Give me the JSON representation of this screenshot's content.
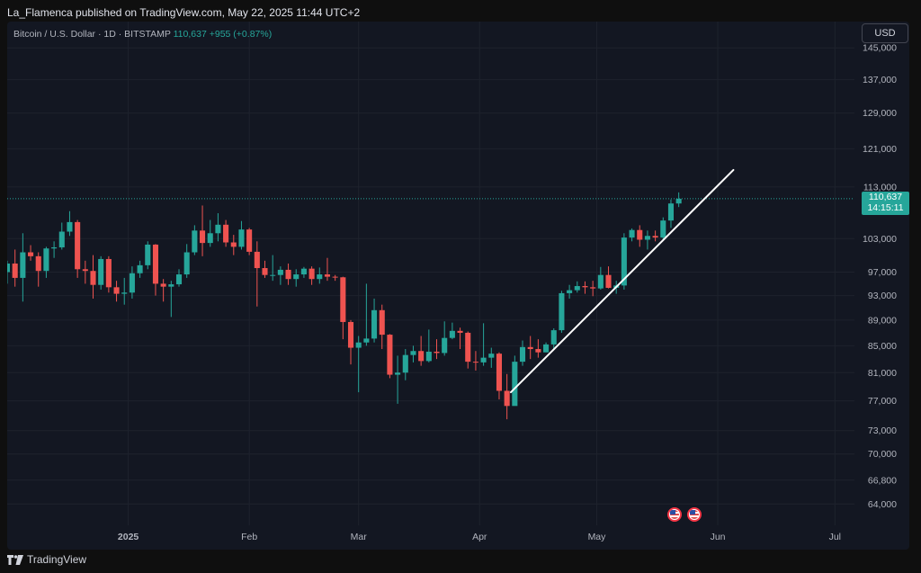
{
  "header": {
    "publisher_text": "La_Flamenca published on TradingView.com, May 22, 2025 11:44 UTC+2"
  },
  "legend": {
    "symbol": "Bitcoin / U.S. Dollar",
    "interval": "1D",
    "exchange": "BITSTAMP",
    "last": "110,637",
    "change": "+955 (+0.87%)"
  },
  "currency_label": "USD",
  "price_tag": {
    "price": "110,637",
    "countdown": "14:15:11"
  },
  "footer": {
    "brand": "TradingView"
  },
  "colors": {
    "up": "#26a69a",
    "down": "#ef5350",
    "background": "#131722",
    "grid": "#1e222d",
    "trendline": "#ffffff"
  },
  "chart_data": {
    "type": "candlestick",
    "y_scale": "log",
    "ylim": [
      61600,
      152000
    ],
    "xlim": [
      "2024-12-01",
      "2025-07-06"
    ],
    "y_ticks": [
      64000,
      66800,
      70000,
      73000,
      77000,
      81000,
      85000,
      89000,
      93000,
      97000,
      103000,
      113000,
      121000,
      129000,
      137000,
      145000
    ],
    "y_tick_labels": [
      "64,000",
      "66,800",
      "70,000",
      "73,000",
      "77,000",
      "81,000",
      "85,000",
      "89,000",
      "93,000",
      "97,000",
      "103,000",
      "113,000",
      "121,000",
      "129,000",
      "137,000",
      "145,000"
    ],
    "x_ticks": [
      {
        "label": "2025",
        "date": "2025-01-01",
        "bold": true
      },
      {
        "label": "Feb",
        "date": "2025-02-01",
        "bold": false
      },
      {
        "label": "Mar",
        "date": "2025-03-01",
        "bold": false
      },
      {
        "label": "Apr",
        "date": "2025-04-01",
        "bold": false
      },
      {
        "label": "May",
        "date": "2025-05-01",
        "bold": false
      },
      {
        "label": "Jun",
        "date": "2025-06-01",
        "bold": false
      },
      {
        "label": "Jul",
        "date": "2025-07-01",
        "bold": false
      }
    ],
    "last_price": 110637,
    "grid": true,
    "series": [
      {
        "date": "2024-12-01",
        "open": 97000,
        "high": 99000,
        "low": 95000,
        "close": 98500
      },
      {
        "date": "2024-12-03",
        "open": 98500,
        "high": 101000,
        "low": 94500,
        "close": 96000
      },
      {
        "date": "2024-12-05",
        "open": 96000,
        "high": 104000,
        "low": 92000,
        "close": 100500
      },
      {
        "date": "2024-12-07",
        "open": 100500,
        "high": 101800,
        "low": 99000,
        "close": 99800
      },
      {
        "date": "2024-12-09",
        "open": 99800,
        "high": 100500,
        "low": 94500,
        "close": 97200
      },
      {
        "date": "2024-12-11",
        "open": 97200,
        "high": 101500,
        "low": 96000,
        "close": 101200
      },
      {
        "date": "2024-12-13",
        "open": 101200,
        "high": 102500,
        "low": 99500,
        "close": 101400
      },
      {
        "date": "2024-12-15",
        "open": 101400,
        "high": 106000,
        "low": 101000,
        "close": 104300
      },
      {
        "date": "2024-12-17",
        "open": 104300,
        "high": 108200,
        "low": 103500,
        "close": 106100
      },
      {
        "date": "2024-12-19",
        "open": 106100,
        "high": 106500,
        "low": 96000,
        "close": 97500
      },
      {
        "date": "2024-12-21",
        "open": 97500,
        "high": 99000,
        "low": 95000,
        "close": 97200
      },
      {
        "date": "2024-12-23",
        "open": 97200,
        "high": 100000,
        "low": 92500,
        "close": 94800
      },
      {
        "date": "2024-12-25",
        "open": 94800,
        "high": 99800,
        "low": 94000,
        "close": 99300
      },
      {
        "date": "2024-12-27",
        "open": 99300,
        "high": 99800,
        "low": 93500,
        "close": 94400
      },
      {
        "date": "2024-12-29",
        "open": 94400,
        "high": 95500,
        "low": 92000,
        "close": 93300
      },
      {
        "date": "2024-12-31",
        "open": 93300,
        "high": 96000,
        "low": 91500,
        "close": 93500
      },
      {
        "date": "2025-01-02",
        "open": 93500,
        "high": 98000,
        "low": 92500,
        "close": 96800
      },
      {
        "date": "2025-01-04",
        "open": 96800,
        "high": 99000,
        "low": 96000,
        "close": 98200
      },
      {
        "date": "2025-01-06",
        "open": 98200,
        "high": 102500,
        "low": 97500,
        "close": 101900
      },
      {
        "date": "2025-01-08",
        "open": 101900,
        "high": 102000,
        "low": 93000,
        "close": 95000
      },
      {
        "date": "2025-01-10",
        "open": 95000,
        "high": 95800,
        "low": 92000,
        "close": 94500
      },
      {
        "date": "2025-01-12",
        "open": 94500,
        "high": 95500,
        "low": 89500,
        "close": 94900
      },
      {
        "date": "2025-01-14",
        "open": 94900,
        "high": 97500,
        "low": 94500,
        "close": 96600
      },
      {
        "date": "2025-01-16",
        "open": 96600,
        "high": 102000,
        "low": 96000,
        "close": 100500
      },
      {
        "date": "2025-01-18",
        "open": 100500,
        "high": 105500,
        "low": 100000,
        "close": 104500
      },
      {
        "date": "2025-01-20",
        "open": 104500,
        "high": 109300,
        "low": 99800,
        "close": 102200
      },
      {
        "date": "2025-01-22",
        "open": 102200,
        "high": 106500,
        "low": 101500,
        "close": 104000
      },
      {
        "date": "2025-01-24",
        "open": 104000,
        "high": 107800,
        "low": 102500,
        "close": 105600
      },
      {
        "date": "2025-01-26",
        "open": 105600,
        "high": 106500,
        "low": 101500,
        "close": 102300
      },
      {
        "date": "2025-01-28",
        "open": 102300,
        "high": 103700,
        "low": 100000,
        "close": 101500
      },
      {
        "date": "2025-01-30",
        "open": 101500,
        "high": 106300,
        "low": 101000,
        "close": 104700
      },
      {
        "date": "2025-02-01",
        "open": 104700,
        "high": 105000,
        "low": 100000,
        "close": 100600
      },
      {
        "date": "2025-02-03",
        "open": 100600,
        "high": 102500,
        "low": 91200,
        "close": 97700
      },
      {
        "date": "2025-02-05",
        "open": 97700,
        "high": 99000,
        "low": 96000,
        "close": 96500
      },
      {
        "date": "2025-02-07",
        "open": 96500,
        "high": 100000,
        "low": 95500,
        "close": 96500
      },
      {
        "date": "2025-02-09",
        "open": 96500,
        "high": 98000,
        "low": 94800,
        "close": 97400
      },
      {
        "date": "2025-02-11",
        "open": 97400,
        "high": 98500,
        "low": 94800,
        "close": 95800
      },
      {
        "date": "2025-02-13",
        "open": 95800,
        "high": 97500,
        "low": 94500,
        "close": 96600
      },
      {
        "date": "2025-02-15",
        "open": 96600,
        "high": 97900,
        "low": 96000,
        "close": 97600
      },
      {
        "date": "2025-02-17",
        "open": 97600,
        "high": 98000,
        "low": 94800,
        "close": 95800
      },
      {
        "date": "2025-02-19",
        "open": 95800,
        "high": 97800,
        "low": 95000,
        "close": 96600
      },
      {
        "date": "2025-02-21",
        "open": 96600,
        "high": 99500,
        "low": 95500,
        "close": 96200
      },
      {
        "date": "2025-02-23",
        "open": 96200,
        "high": 96500,
        "low": 95500,
        "close": 96100
      },
      {
        "date": "2025-02-25",
        "open": 96100,
        "high": 96200,
        "low": 86000,
        "close": 88700
      },
      {
        "date": "2025-02-27",
        "open": 88700,
        "high": 89000,
        "low": 82200,
        "close": 84700
      },
      {
        "date": "2025-03-01",
        "open": 84700,
        "high": 86500,
        "low": 78200,
        "close": 85500
      },
      {
        "date": "2025-03-03",
        "open": 85500,
        "high": 95000,
        "low": 85000,
        "close": 86100
      },
      {
        "date": "2025-03-05",
        "open": 86100,
        "high": 92500,
        "low": 85500,
        "close": 90600
      },
      {
        "date": "2025-03-07",
        "open": 90600,
        "high": 91500,
        "low": 84500,
        "close": 86700
      },
      {
        "date": "2025-03-09",
        "open": 86700,
        "high": 86800,
        "low": 80200,
        "close": 80700
      },
      {
        "date": "2025-03-11",
        "open": 80700,
        "high": 83500,
        "low": 76600,
        "close": 81000
      },
      {
        "date": "2025-03-13",
        "open": 81000,
        "high": 84500,
        "low": 79900,
        "close": 83600
      },
      {
        "date": "2025-03-15",
        "open": 83600,
        "high": 85000,
        "low": 82500,
        "close": 84200
      },
      {
        "date": "2025-03-17",
        "open": 84200,
        "high": 86500,
        "low": 82000,
        "close": 82700
      },
      {
        "date": "2025-03-19",
        "open": 82700,
        "high": 87500,
        "low": 82500,
        "close": 84100
      },
      {
        "date": "2025-03-21",
        "open": 84100,
        "high": 86000,
        "low": 83000,
        "close": 83900
      },
      {
        "date": "2025-03-23",
        "open": 83900,
        "high": 88800,
        "low": 83500,
        "close": 86200
      },
      {
        "date": "2025-03-25",
        "open": 86200,
        "high": 88600,
        "low": 86000,
        "close": 87300
      },
      {
        "date": "2025-03-27",
        "open": 87300,
        "high": 87800,
        "low": 84500,
        "close": 87000
      },
      {
        "date": "2025-03-29",
        "open": 87000,
        "high": 87200,
        "low": 81600,
        "close": 82600
      },
      {
        "date": "2025-03-31",
        "open": 82600,
        "high": 84200,
        "low": 81300,
        "close": 82500
      },
      {
        "date": "2025-04-02",
        "open": 82500,
        "high": 88500,
        "low": 82000,
        "close": 83200
      },
      {
        "date": "2025-04-04",
        "open": 83200,
        "high": 84700,
        "low": 81700,
        "close": 83800
      },
      {
        "date": "2025-04-06",
        "open": 83800,
        "high": 84000,
        "low": 77200,
        "close": 78400
      },
      {
        "date": "2025-04-08",
        "open": 78400,
        "high": 80800,
        "low": 74500,
        "close": 76300
      },
      {
        "date": "2025-04-10",
        "open": 76300,
        "high": 83500,
        "low": 78000,
        "close": 82600
      },
      {
        "date": "2025-04-12",
        "open": 82600,
        "high": 85800,
        "low": 82000,
        "close": 84800
      },
      {
        "date": "2025-04-14",
        "open": 84800,
        "high": 86500,
        "low": 83000,
        "close": 84500
      },
      {
        "date": "2025-04-16",
        "open": 84500,
        "high": 86000,
        "low": 83200,
        "close": 84000
      },
      {
        "date": "2025-04-18",
        "open": 84000,
        "high": 85500,
        "low": 84000,
        "close": 85200
      },
      {
        "date": "2025-04-20",
        "open": 85200,
        "high": 87700,
        "low": 84500,
        "close": 87400
      },
      {
        "date": "2025-04-22",
        "open": 87400,
        "high": 93800,
        "low": 87000,
        "close": 93400
      },
      {
        "date": "2025-04-24",
        "open": 93400,
        "high": 94800,
        "low": 92500,
        "close": 93900
      },
      {
        "date": "2025-04-26",
        "open": 93900,
        "high": 95400,
        "low": 93500,
        "close": 94600
      },
      {
        "date": "2025-04-28",
        "open": 94600,
        "high": 95400,
        "low": 93300,
        "close": 94400
      },
      {
        "date": "2025-04-30",
        "open": 94400,
        "high": 95500,
        "low": 92900,
        "close": 94200
      },
      {
        "date": "2025-05-02",
        "open": 94200,
        "high": 97900,
        "low": 94000,
        "close": 96500
      },
      {
        "date": "2025-05-04",
        "open": 96500,
        "high": 98000,
        "low": 94200,
        "close": 94300
      },
      {
        "date": "2025-05-06",
        "open": 94300,
        "high": 95500,
        "low": 93300,
        "close": 94700
      },
      {
        "date": "2025-05-08",
        "open": 94700,
        "high": 104000,
        "low": 94000,
        "close": 103200
      },
      {
        "date": "2025-05-10",
        "open": 103200,
        "high": 104900,
        "low": 102500,
        "close": 104600
      },
      {
        "date": "2025-05-12",
        "open": 104600,
        "high": 105500,
        "low": 101500,
        "close": 102800
      },
      {
        "date": "2025-05-14",
        "open": 102800,
        "high": 104500,
        "low": 101000,
        "close": 103500
      },
      {
        "date": "2025-05-16",
        "open": 103500,
        "high": 104500,
        "low": 102500,
        "close": 103200
      },
      {
        "date": "2025-05-18",
        "open": 103200,
        "high": 107000,
        "low": 102800,
        "close": 106400
      },
      {
        "date": "2025-05-20",
        "open": 106400,
        "high": 110500,
        "low": 105000,
        "close": 109700
      },
      {
        "date": "2025-05-22",
        "open": 109700,
        "high": 111900,
        "low": 109000,
        "close": 110637
      }
    ],
    "trendline": {
      "start": {
        "date": "2025-04-09",
        "price": 78200
      },
      "end": {
        "date": "2025-06-05",
        "price": 116500
      }
    },
    "event_markers": [
      {
        "date": "2025-05-21"
      },
      {
        "date": "2025-05-26"
      }
    ]
  }
}
